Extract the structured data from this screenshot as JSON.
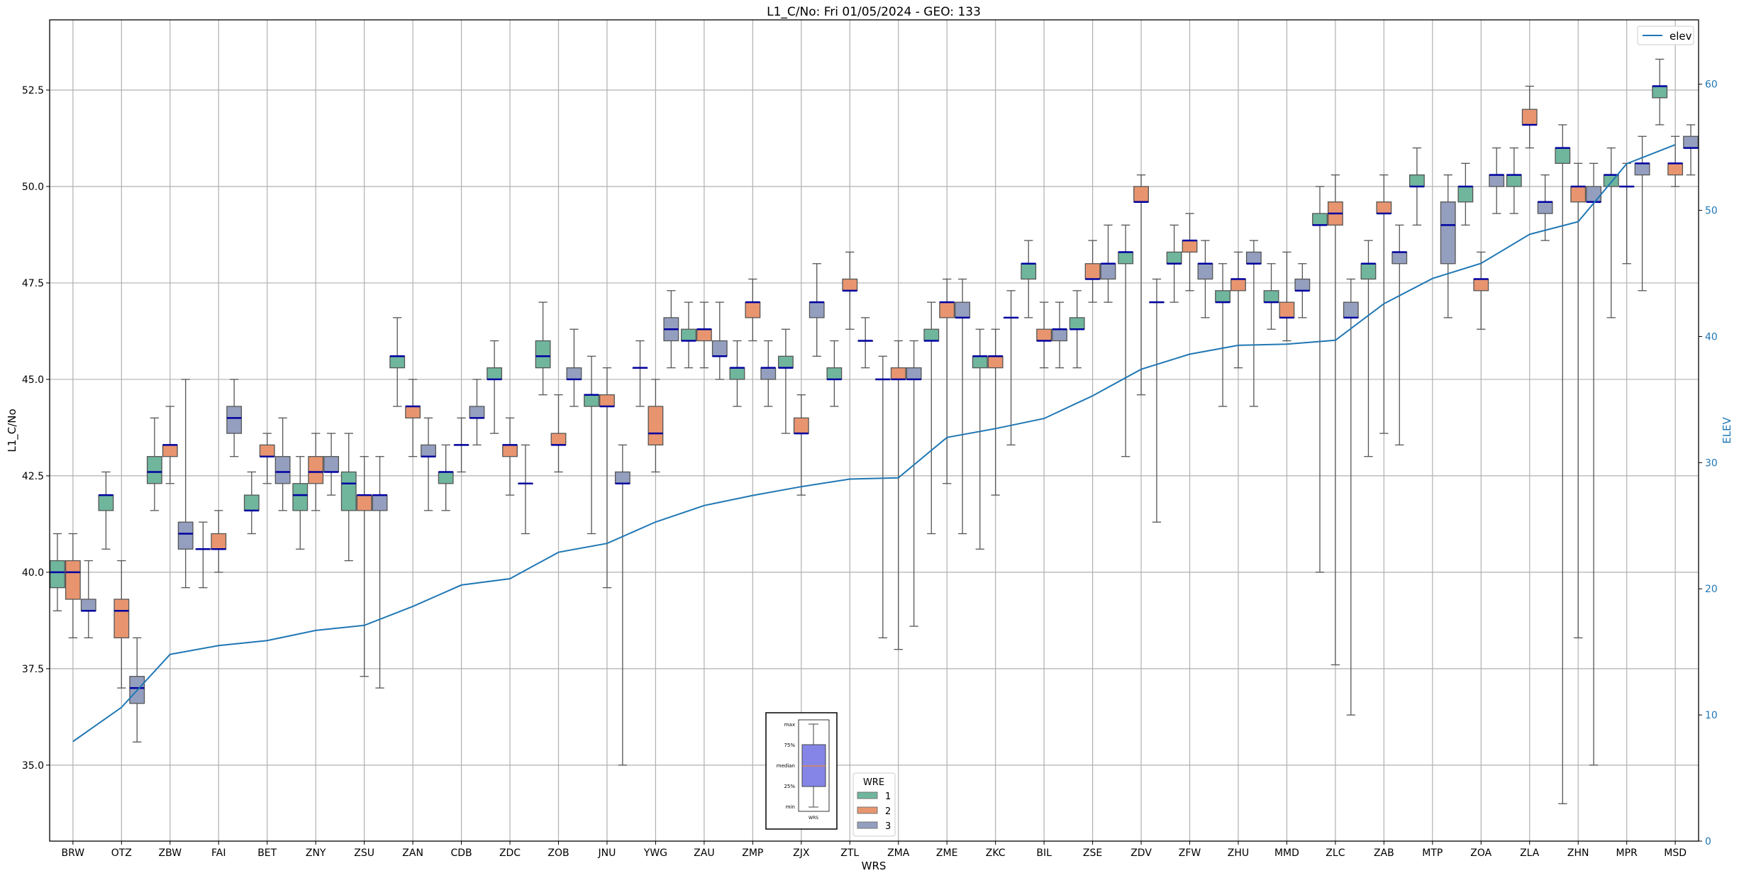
{
  "chart_data": {
    "type": "boxplot+line",
    "title": "L1_C/No: Fri 01/05/2024 - GEO: 133",
    "xlabel": "WRS",
    "ylabel": "L1_C/No",
    "y2label": "ELEV",
    "ylim": [
      33.03,
      54.32
    ],
    "y2lim": [
      0,
      65.1
    ],
    "yticks": [
      "35.0",
      "37.5",
      "40.0",
      "42.5",
      "45.0",
      "47.5",
      "50.0",
      "52.5"
    ],
    "y2ticks": [
      "0",
      "10",
      "20",
      "30",
      "40",
      "50",
      "60"
    ],
    "grid": true,
    "categories": [
      "BRW",
      "OTZ",
      "ZBW",
      "FAI",
      "BET",
      "ZNY",
      "ZSU",
      "ZAN",
      "CDB",
      "ZDC",
      "ZOB",
      "JNU",
      "YWG",
      "ZAU",
      "ZMP",
      "ZJX",
      "ZTL",
      "ZMA",
      "ZME",
      "ZKC",
      "BIL",
      "ZSE",
      "ZDV",
      "ZFW",
      "ZHU",
      "MMD",
      "ZLC",
      "ZAB",
      "MTP",
      "ZOA",
      "ZLA",
      "ZHN",
      "MPR",
      "MSD"
    ],
    "box_format": [
      "min",
      "q1",
      "median",
      "q3",
      "max"
    ],
    "series": [
      {
        "name": "1",
        "color": "#6fb69d",
        "boxes": [
          [
            39.0,
            39.6,
            40.0,
            40.3,
            41.0
          ],
          [
            40.6,
            41.6,
            42.0,
            42.0,
            42.6
          ],
          [
            41.6,
            42.3,
            42.6,
            43.0,
            44.0
          ],
          [
            39.6,
            40.6,
            40.6,
            40.6,
            41.3
          ],
          [
            41.0,
            41.6,
            41.6,
            42.0,
            42.6
          ],
          [
            40.6,
            41.6,
            42.0,
            42.3,
            43.0
          ],
          [
            40.3,
            41.6,
            42.3,
            42.6,
            43.6
          ],
          [
            44.3,
            45.3,
            45.6,
            45.6,
            46.6
          ],
          [
            41.6,
            42.3,
            42.6,
            42.6,
            43.3
          ],
          [
            43.6,
            45.0,
            45.0,
            45.3,
            46.0
          ],
          [
            44.6,
            45.3,
            45.6,
            46.0,
            47.0
          ],
          [
            41.0,
            44.3,
            44.6,
            44.6,
            45.6
          ],
          [
            44.3,
            45.3,
            45.3,
            45.3,
            46.0
          ],
          [
            45.3,
            46.0,
            46.0,
            46.3,
            47.0
          ],
          [
            44.3,
            45.0,
            45.3,
            45.3,
            46.0
          ],
          [
            43.6,
            45.3,
            45.3,
            45.6,
            46.3
          ],
          [
            44.3,
            45.0,
            45.0,
            45.3,
            46.0
          ],
          [
            38.3,
            45.0,
            45.0,
            45.0,
            45.6
          ],
          [
            41.0,
            46.0,
            46.0,
            46.3,
            47.0
          ],
          [
            40.6,
            45.3,
            45.6,
            45.6,
            46.3
          ],
          [
            46.6,
            47.6,
            48.0,
            48.0,
            48.6
          ],
          [
            45.3,
            46.3,
            46.3,
            46.6,
            47.3
          ],
          [
            43.0,
            48.0,
            48.3,
            48.3,
            49.0
          ],
          [
            47.0,
            48.0,
            48.0,
            48.3,
            49.0
          ],
          [
            44.3,
            47.0,
            47.0,
            47.3,
            48.0
          ],
          [
            46.3,
            47.0,
            47.0,
            47.3,
            48.0
          ],
          [
            40.0,
            49.0,
            49.0,
            49.3,
            50.0
          ],
          [
            43.0,
            47.6,
            48.0,
            48.0,
            48.6
          ],
          [
            49.0,
            50.0,
            50.0,
            50.3,
            51.0
          ],
          [
            49.0,
            49.6,
            50.0,
            50.0,
            50.6
          ],
          [
            49.3,
            50.0,
            50.3,
            50.3,
            51.0
          ],
          [
            34.0,
            50.6,
            51.0,
            51.0,
            51.6
          ],
          [
            46.6,
            50.0,
            50.3,
            50.3,
            51.0
          ],
          [
            51.6,
            52.3,
            52.6,
            52.6,
            53.3
          ]
        ]
      },
      {
        "name": "2",
        "color": "#e8956f",
        "boxes": [
          [
            38.3,
            39.3,
            40.0,
            40.3,
            41.0
          ],
          [
            37.0,
            38.3,
            39.0,
            39.3,
            40.3
          ],
          [
            42.3,
            43.0,
            43.3,
            43.3,
            44.3
          ],
          [
            40.0,
            40.6,
            40.6,
            41.0,
            41.6
          ],
          [
            42.3,
            43.0,
            43.0,
            43.3,
            43.6
          ],
          [
            41.6,
            42.3,
            42.6,
            43.0,
            43.6
          ],
          [
            37.3,
            41.6,
            42.0,
            42.0,
            43.0
          ],
          [
            43.0,
            44.0,
            44.3,
            44.3,
            45.0
          ],
          [
            42.6,
            43.3,
            43.3,
            43.3,
            44.0
          ],
          [
            42.0,
            43.0,
            43.3,
            43.3,
            44.0
          ],
          [
            42.6,
            43.3,
            43.3,
            43.6,
            44.6
          ],
          [
            39.6,
            44.3,
            44.3,
            44.6,
            45.3
          ],
          [
            42.6,
            43.3,
            43.6,
            44.3,
            45.0
          ],
          [
            45.3,
            46.0,
            46.3,
            46.3,
            47.0
          ],
          [
            46.0,
            46.6,
            47.0,
            47.0,
            47.6
          ],
          [
            42.0,
            43.6,
            43.6,
            44.0,
            44.6
          ],
          [
            46.3,
            47.3,
            47.3,
            47.6,
            48.3
          ],
          [
            38.0,
            45.0,
            45.0,
            45.3,
            46.0
          ],
          [
            42.3,
            46.6,
            47.0,
            47.0,
            47.6
          ],
          [
            42.0,
            45.3,
            45.6,
            45.6,
            46.3
          ],
          [
            45.3,
            46.0,
            46.0,
            46.3,
            47.0
          ],
          [
            47.0,
            47.6,
            47.6,
            48.0,
            48.6
          ],
          [
            44.6,
            49.6,
            49.6,
            50.0,
            50.3
          ],
          [
            47.3,
            48.3,
            48.6,
            48.6,
            49.3
          ],
          [
            45.3,
            47.3,
            47.6,
            47.6,
            48.3
          ],
          [
            46.0,
            46.6,
            46.6,
            47.0,
            48.3
          ],
          [
            37.6,
            49.0,
            49.3,
            49.6,
            50.3
          ],
          [
            43.6,
            49.3,
            49.3,
            49.6,
            50.3
          ],
          null,
          [
            46.3,
            47.3,
            47.6,
            47.6,
            48.3
          ],
          [
            51.0,
            51.6,
            51.6,
            52.0,
            52.6
          ],
          [
            38.3,
            49.6,
            50.0,
            50.0,
            50.6
          ],
          [
            48.0,
            50.0,
            50.0,
            50.0,
            50.6
          ],
          [
            50.0,
            50.3,
            50.6,
            50.6,
            51.3
          ]
        ]
      },
      {
        "name": "3",
        "color": "#949fbf",
        "boxes": [
          [
            38.3,
            39.0,
            39.0,
            39.3,
            40.3
          ],
          [
            35.6,
            36.6,
            37.0,
            37.3,
            38.3
          ],
          [
            39.6,
            40.6,
            41.0,
            41.3,
            45.0
          ],
          [
            43.0,
            43.6,
            44.0,
            44.3,
            45.0
          ],
          [
            41.6,
            42.3,
            42.6,
            43.0,
            44.0
          ],
          [
            42.0,
            42.6,
            42.6,
            43.0,
            43.6
          ],
          [
            37.0,
            41.6,
            42.0,
            42.0,
            43.0
          ],
          [
            41.6,
            43.0,
            43.0,
            43.3,
            44.0
          ],
          [
            43.3,
            44.0,
            44.0,
            44.3,
            45.0
          ],
          [
            41.0,
            42.3,
            42.3,
            42.3,
            43.3
          ],
          [
            44.3,
            45.0,
            45.0,
            45.3,
            46.3
          ],
          [
            35.0,
            42.3,
            42.3,
            42.6,
            43.3
          ],
          [
            45.3,
            46.0,
            46.3,
            46.6,
            47.3
          ],
          [
            45.0,
            45.6,
            45.6,
            46.0,
            47.0
          ],
          [
            44.3,
            45.0,
            45.3,
            45.3,
            46.0
          ],
          [
            45.6,
            46.6,
            47.0,
            47.0,
            48.0
          ],
          [
            45.3,
            46.0,
            46.0,
            46.0,
            46.6
          ],
          [
            38.6,
            45.0,
            45.0,
            45.3,
            46.0
          ],
          [
            41.0,
            46.6,
            46.6,
            47.0,
            47.6
          ],
          [
            43.3,
            46.6,
            46.6,
            46.6,
            47.3
          ],
          [
            45.3,
            46.0,
            46.3,
            46.3,
            47.0
          ],
          [
            47.0,
            47.6,
            48.0,
            48.0,
            49.0
          ],
          [
            41.3,
            47.0,
            47.0,
            47.0,
            47.6
          ],
          [
            46.6,
            47.6,
            48.0,
            48.0,
            48.6
          ],
          [
            44.3,
            48.0,
            48.0,
            48.3,
            48.6
          ],
          [
            46.6,
            47.3,
            47.3,
            47.6,
            48.0
          ],
          [
            36.3,
            46.6,
            46.6,
            47.0,
            47.6
          ],
          [
            43.3,
            48.0,
            48.3,
            48.3,
            49.0
          ],
          [
            46.6,
            48.0,
            49.0,
            49.6,
            50.3
          ],
          [
            49.3,
            50.0,
            50.3,
            50.3,
            51.0
          ],
          [
            48.6,
            49.3,
            49.6,
            49.6,
            50.3
          ],
          [
            35.0,
            49.6,
            49.6,
            50.0,
            50.6
          ],
          [
            47.3,
            50.3,
            50.6,
            50.6,
            51.3
          ],
          [
            50.3,
            51.0,
            51.0,
            51.3,
            51.6
          ]
        ]
      }
    ],
    "line": {
      "name": "elev",
      "color": "#1f77b4",
      "axis": "right",
      "values": [
        7.9,
        10.6,
        14.8,
        15.5,
        15.9,
        16.7,
        17.1,
        18.6,
        20.3,
        20.8,
        22.9,
        23.6,
        25.3,
        26.6,
        27.4,
        28.1,
        28.7,
        28.8,
        32.0,
        32.7,
        33.5,
        35.3,
        37.4,
        38.6,
        39.3,
        39.4,
        39.7,
        42.6,
        44.6,
        45.8,
        48.1,
        49.1,
        53.7,
        55.2
      ]
    },
    "median_color": "#0000a0",
    "legend_line": {
      "label": "elev",
      "placement": "top-right"
    },
    "legend_wre": {
      "title": "WRE",
      "labels": [
        "1",
        "2",
        "3"
      ],
      "placement": "bottom-center"
    },
    "key_inset": {
      "labels": [
        "max",
        "75%",
        "median",
        "25%",
        "min"
      ],
      "xlabel": "WRS",
      "box_color": "#8585e8",
      "median_color": "#ff8c00"
    }
  }
}
